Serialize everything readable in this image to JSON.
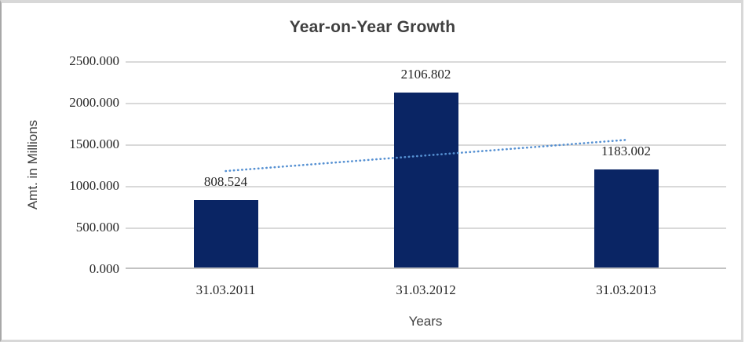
{
  "chart_data": {
    "type": "bar",
    "title": "Year-on-Year Growth",
    "xlabel": "Years",
    "ylabel": "Amt. in Millions",
    "categories": [
      "31.03.2011",
      "31.03.2012",
      "31.03.2013"
    ],
    "values": [
      808.524,
      2106.802,
      1183.002
    ],
    "data_labels": [
      "808.524",
      "2106.802",
      "1183.002"
    ],
    "ylim": [
      0,
      2500
    ],
    "yticks": [
      {
        "value": 0,
        "label": "0.000"
      },
      {
        "value": 500,
        "label": "500.000"
      },
      {
        "value": 1000,
        "label": "1000.000"
      },
      {
        "value": 1500,
        "label": "1500.000"
      },
      {
        "value": 2000,
        "label": "2000.000"
      },
      {
        "value": 2500,
        "label": "2500.000"
      }
    ],
    "grid": true,
    "legend": false,
    "bar_color": "#0A2564",
    "axis_line_color": "#c2c2c2",
    "gridline_color": "#d9d9d9",
    "trendline": {
      "type": "linear",
      "style": "dotted",
      "color": "#5590D2",
      "start_value": 1178.9,
      "end_value": 1553.4
    }
  }
}
